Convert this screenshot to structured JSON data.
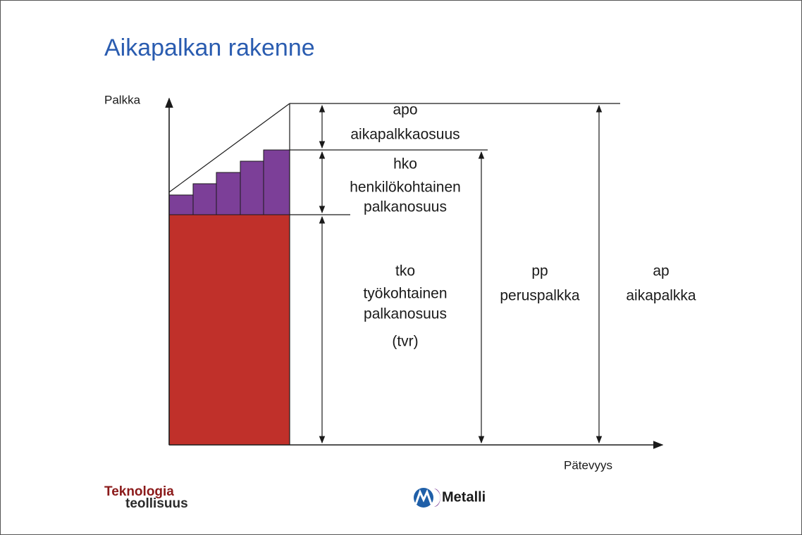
{
  "header": {
    "title": "Aikapalkan rakenne"
  },
  "axes": {
    "y_label": "Palkka",
    "x_label": "Pätevyys"
  },
  "segments": {
    "apo": [
      "apo",
      "aikapalkkaosuus"
    ],
    "hko": [
      "hko",
      "henkilökohtainen",
      "palkanosuus"
    ],
    "tko": [
      "tko",
      "työkohtainen",
      "palkanosuus",
      "(tvr)"
    ],
    "pp": [
      "pp",
      "peruspalkka"
    ],
    "ap": [
      "ap",
      "aikapalkka"
    ]
  },
  "footer": {
    "logo_left": [
      "Teknologia",
      "teollisuus"
    ],
    "logo_right": "Metalli"
  }
}
